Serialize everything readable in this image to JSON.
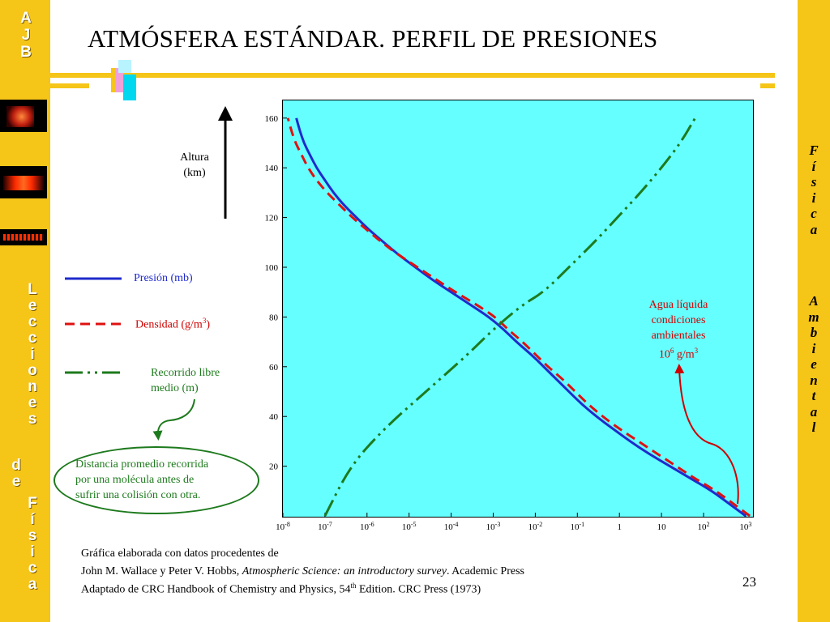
{
  "slide": {
    "title": "ATMÓSFERA ESTÁNDAR. PERFIL DE PRESIONES",
    "page_number": "23"
  },
  "left_sidebar": {
    "top_letters": [
      "A",
      "J",
      "B"
    ],
    "vertical_text_1": [
      "L",
      "e",
      "c",
      "c",
      "i",
      "o",
      "n",
      "e",
      "s"
    ],
    "vertical_text_2": [
      "d",
      "e"
    ],
    "vertical_text_3": [
      "F",
      "í",
      "s",
      "i",
      "c",
      "a"
    ]
  },
  "right_sidebar": {
    "word_1": [
      "F",
      "í",
      "s",
      "i",
      "c",
      "a"
    ],
    "word_2": [
      "A",
      "m",
      "b",
      "i",
      "e",
      "n",
      "t",
      "a",
      "l"
    ]
  },
  "colors": {
    "sidebar": "#f5c518",
    "plot_background": "#66ffff",
    "pressure": "#1f2bcc",
    "density": "#e01010",
    "mean_free_path": "#1d7a1d",
    "annotation": "#d00000"
  },
  "axis": {
    "y_label_line1": "Altura",
    "y_label_line2": "(km)"
  },
  "legend": {
    "pressure": "Presión (mb)",
    "density_prefix": "Densidad (g/m",
    "density_sup": "3",
    "density_suffix": ")",
    "mfp_line1": "Recorrido libre",
    "mfp_line2": "medio (m)"
  },
  "annotation": {
    "line1": "Agua líquida",
    "line2": "condiciones",
    "line3": "ambientales",
    "line4_base": "10",
    "line4_sup": "6",
    "line4_unit": " g/m",
    "line4_unit_sup": "3"
  },
  "note": {
    "line1": "Distancia promedio recorrida",
    "line2": "por una molécula antes de",
    "line3": "sufrir una colisión con otra."
  },
  "credits": {
    "line1": "Gráfica elaborada con datos procedentes de",
    "line2_a": "John M. Wallace y Peter V. Hobbs, ",
    "line2_b": "Atmospheric Science: an introductory survey",
    "line2_c": ". Academic Press",
    "line3_a": "Adaptado de CRC Handbook of Chemistry and Physics, 54",
    "line3_sup": "th",
    "line3_b": " Edition. CRC Press (1973)"
  },
  "chart_data": {
    "type": "line",
    "x_scale": "log10",
    "xlim_exponent": [
      -8,
      3
    ],
    "ylim": [
      0,
      165
    ],
    "x_ticks": [
      {
        "base": "10",
        "exp": "-8",
        "value": -8
      },
      {
        "base": "10",
        "exp": "-7",
        "value": -7
      },
      {
        "base": "10",
        "exp": "-6",
        "value": -6
      },
      {
        "base": "10",
        "exp": "-5",
        "value": -5
      },
      {
        "base": "10",
        "exp": "-4",
        "value": -4
      },
      {
        "base": "10",
        "exp": "-3",
        "value": -3
      },
      {
        "base": "10",
        "exp": "-2",
        "value": -2
      },
      {
        "base": "10",
        "exp": "-1",
        "value": -1
      },
      {
        "base": "1",
        "exp": "",
        "value": 0
      },
      {
        "base": "10",
        "exp": "",
        "value": 1
      },
      {
        "base": "10",
        "exp": "2",
        "value": 2
      },
      {
        "base": "10",
        "exp": "3",
        "value": 3
      }
    ],
    "y_ticks": [
      20,
      40,
      60,
      80,
      100,
      120,
      140,
      160
    ],
    "series": [
      {
        "name": "Presión (mb)",
        "style": "solid",
        "points": [
          [
            3.0,
            0
          ],
          [
            2.6,
            5
          ],
          [
            2.2,
            10
          ],
          [
            1.7,
            15
          ],
          [
            1.2,
            20
          ],
          [
            0.7,
            25
          ],
          [
            0.25,
            30
          ],
          [
            -0.15,
            35
          ],
          [
            -0.55,
            40
          ],
          [
            -0.9,
            45
          ],
          [
            -1.2,
            50
          ],
          [
            -1.5,
            55
          ],
          [
            -1.8,
            60
          ],
          [
            -2.1,
            65
          ],
          [
            -2.45,
            70
          ],
          [
            -2.75,
            75
          ],
          [
            -3.1,
            80
          ],
          [
            -3.55,
            85
          ],
          [
            -4.0,
            90
          ],
          [
            -4.45,
            95
          ],
          [
            -4.85,
            100
          ],
          [
            -5.25,
            105
          ],
          [
            -5.6,
            110
          ],
          [
            -5.95,
            115
          ],
          [
            -6.25,
            120
          ],
          [
            -6.55,
            125
          ],
          [
            -6.8,
            130
          ],
          [
            -7.0,
            135
          ],
          [
            -7.2,
            140
          ],
          [
            -7.35,
            145
          ],
          [
            -7.5,
            150
          ],
          [
            -7.6,
            155
          ],
          [
            -7.68,
            160
          ]
        ]
      },
      {
        "name": "Densidad (g/m³)",
        "style": "dashed",
        "points": [
          [
            3.1,
            0
          ],
          [
            2.7,
            5
          ],
          [
            2.3,
            10
          ],
          [
            1.8,
            15
          ],
          [
            1.35,
            20
          ],
          [
            0.9,
            25
          ],
          [
            0.45,
            30
          ],
          [
            0.0,
            35
          ],
          [
            -0.4,
            40
          ],
          [
            -0.75,
            45
          ],
          [
            -1.05,
            50
          ],
          [
            -1.35,
            55
          ],
          [
            -1.7,
            60
          ],
          [
            -2.0,
            65
          ],
          [
            -2.3,
            70
          ],
          [
            -2.65,
            75
          ],
          [
            -2.95,
            80
          ],
          [
            -3.4,
            85
          ],
          [
            -3.9,
            90
          ],
          [
            -4.35,
            95
          ],
          [
            -4.8,
            100
          ],
          [
            -5.25,
            105
          ],
          [
            -5.65,
            110
          ],
          [
            -6.0,
            115
          ],
          [
            -6.35,
            120
          ],
          [
            -6.65,
            125
          ],
          [
            -6.95,
            130
          ],
          [
            -7.2,
            135
          ],
          [
            -7.4,
            140
          ],
          [
            -7.55,
            145
          ],
          [
            -7.7,
            150
          ],
          [
            -7.8,
            155
          ],
          [
            -7.88,
            160
          ]
        ]
      },
      {
        "name": "Recorrido libre medio (m)",
        "style": "dashdot",
        "points": [
          [
            -7.0,
            0
          ],
          [
            -6.4,
            20
          ],
          [
            -5.6,
            35
          ],
          [
            -4.6,
            50
          ],
          [
            -3.6,
            65
          ],
          [
            -3.0,
            75
          ],
          [
            -2.3,
            85
          ],
          [
            -1.8,
            90
          ],
          [
            -1.2,
            100
          ],
          [
            -0.6,
            110
          ],
          [
            -0.05,
            120
          ],
          [
            0.5,
            130
          ],
          [
            1.0,
            140
          ],
          [
            1.45,
            150
          ],
          [
            1.8,
            160
          ]
        ]
      }
    ],
    "annotation_point": [
      3.1,
      5
    ]
  }
}
